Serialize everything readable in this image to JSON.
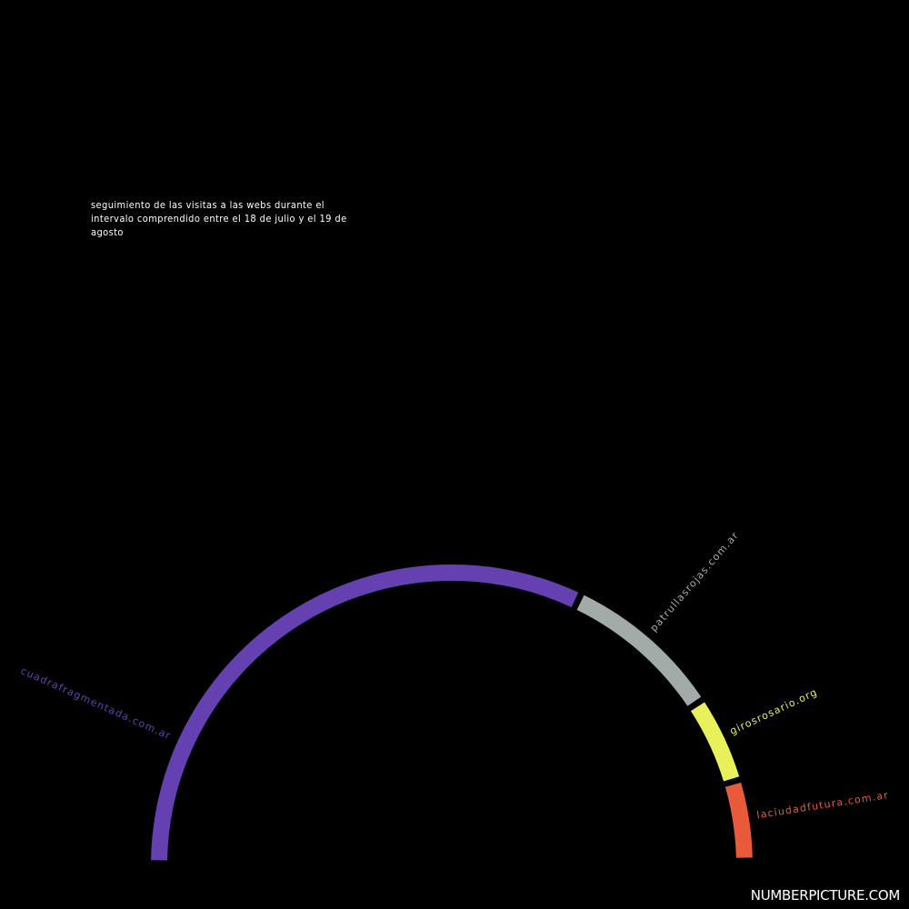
{
  "subtitle": "seguimiento de las visitas a las webs durante el intervalo comprendido entre el 18 de julio y el 19 de agosto",
  "brand": "NUMBERPICTURE.COM",
  "chart_data": {
    "type": "pie",
    "series": [
      {
        "name": "cuadrafragmentada.com.ar",
        "value": 64.5,
        "color": "#6440b0"
      },
      {
        "name": "patrullasrojas.com.ar",
        "value": 17.5,
        "color": "#a3aba8"
      },
      {
        "name": "girosrosario.org",
        "value": 9.5,
        "color": "#e8f05a"
      },
      {
        "name": "laciudadfutura.com.ar",
        "value": 8.5,
        "color": "#e85a3a"
      }
    ]
  }
}
